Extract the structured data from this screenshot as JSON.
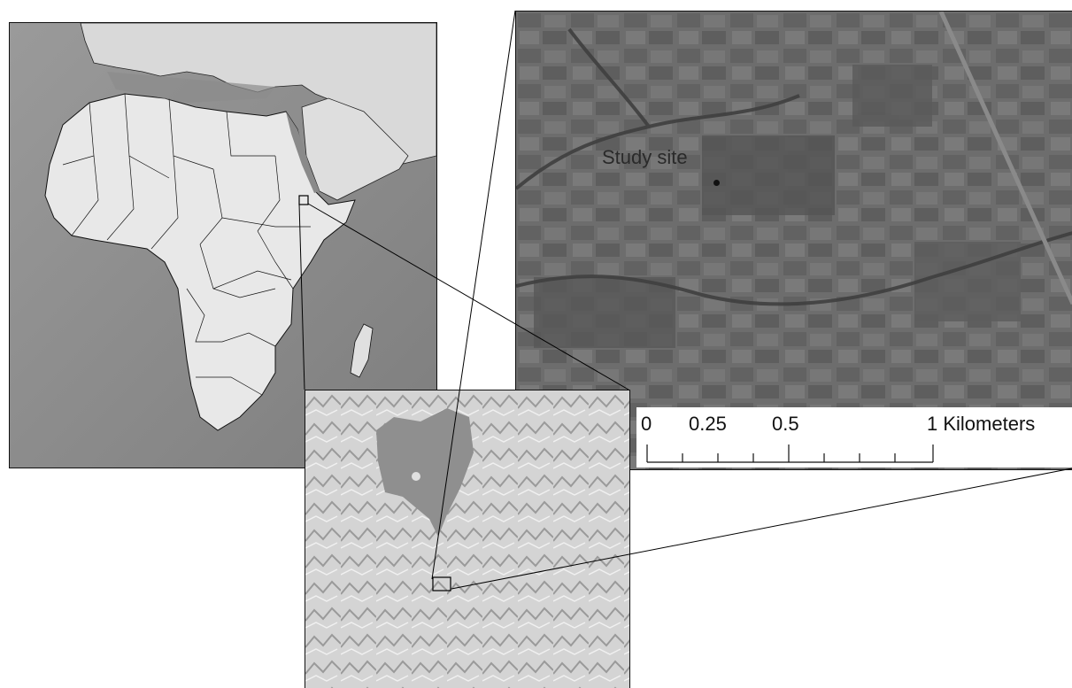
{
  "satellite": {
    "site_label": "Study site"
  },
  "scale_bar": {
    "labels": [
      "0",
      "0.25",
      "0.5",
      "1 Kilometers"
    ]
  }
}
